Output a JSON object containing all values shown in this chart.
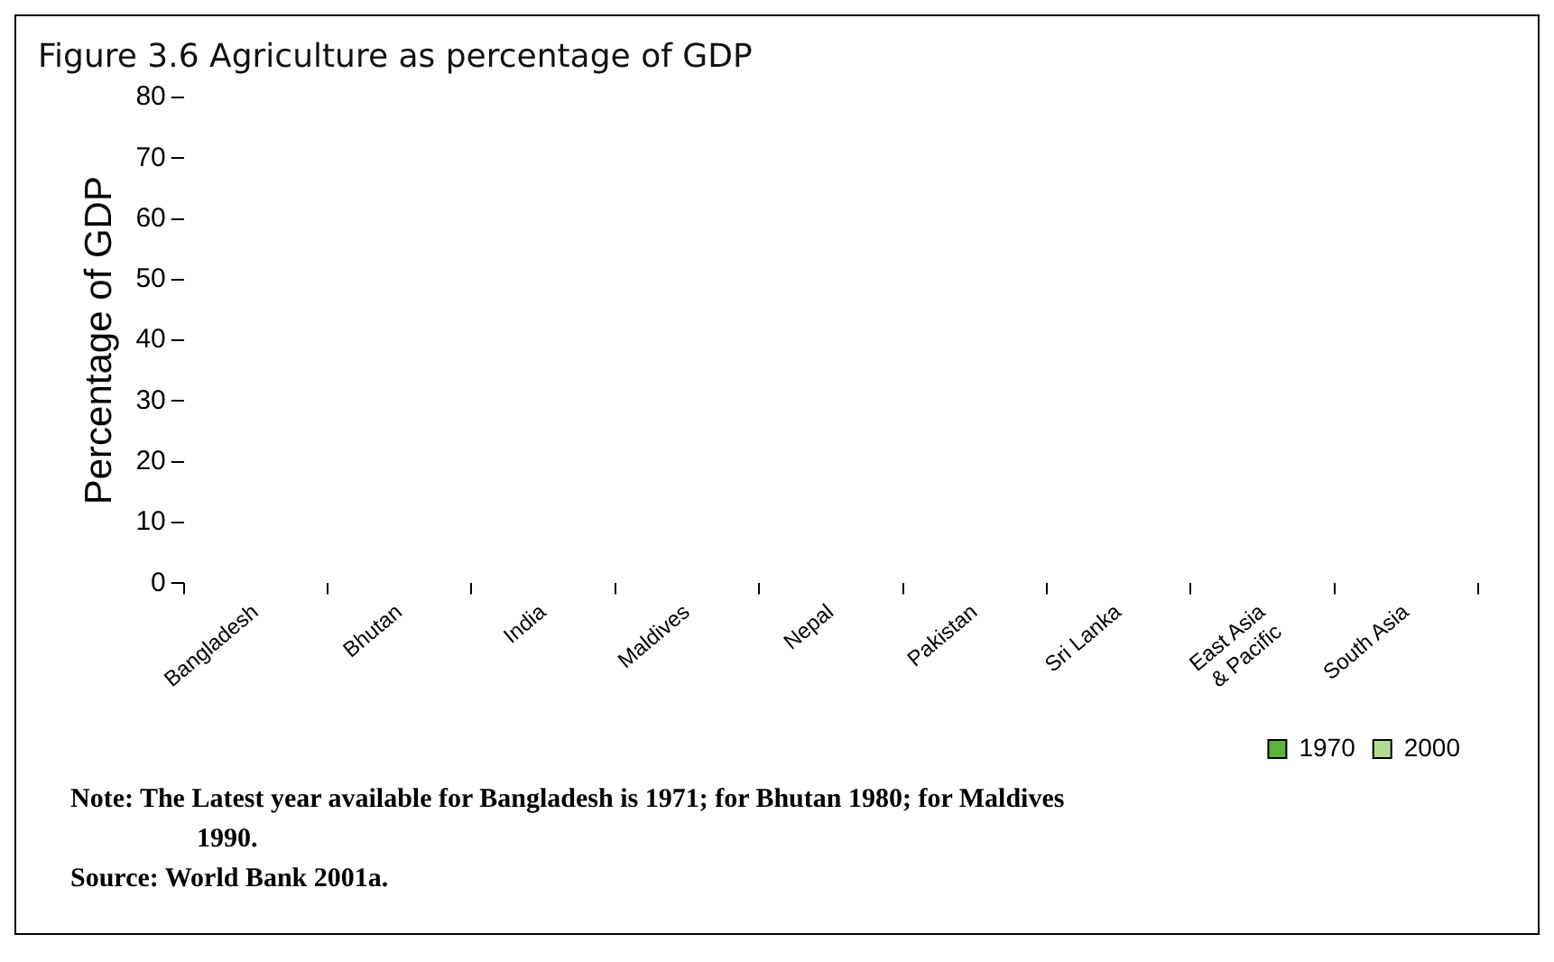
{
  "chart_data": {
    "type": "bar",
    "title": "Figure 3.6 Agriculture as percentage of GDP",
    "ylabel": "Percentage of GDP",
    "categories": [
      "Bangladesh",
      "Bhutan",
      "India",
      "Maldives",
      "Nepal",
      "Pakistan",
      "Sri Lanka",
      "East Asia & Pacific",
      "South Asia"
    ],
    "series": [
      {
        "name": "1970",
        "color": "#5cb33a",
        "values": [
          null,
          null,
          null,
          null,
          null,
          null,
          null,
          null,
          null
        ]
      },
      {
        "name": "2000",
        "color": "#b5dc93",
        "values": [
          null,
          null,
          null,
          null,
          null,
          null,
          null,
          null,
          null
        ]
      }
    ],
    "ylim": [
      0,
      80
    ],
    "yticks": [
      0,
      10,
      20,
      30,
      40,
      50,
      60,
      70,
      80
    ],
    "grid": false,
    "legend": "bottom right",
    "annotations": [
      "Note: The Latest year available for Bangladesh is 1971; for Bhutan 1980; for Maldives 1990.",
      "Source: World Bank 2001a."
    ]
  }
}
